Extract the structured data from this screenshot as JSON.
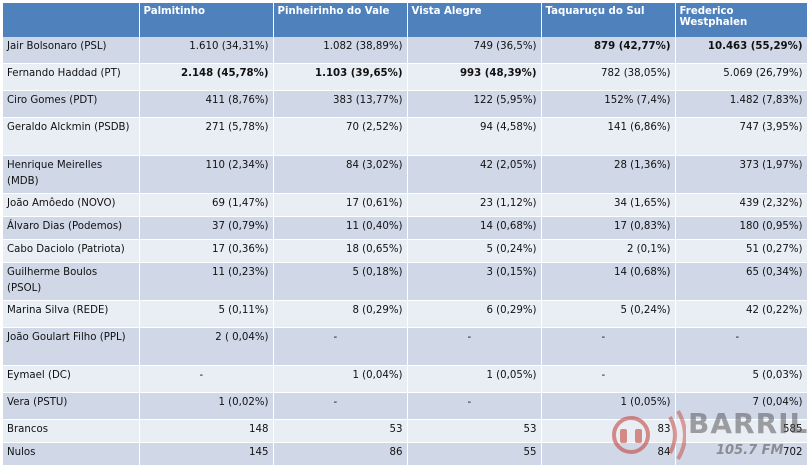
{
  "columns": [
    "",
    "Palmitinho",
    "Pinheirinho do Vale",
    "Vista Alegre",
    "Taquaruçu do Sul",
    "Frederico Westphalen"
  ],
  "rows": [
    {
      "name": "Jair Bolsonaro (PSL)",
      "cells": [
        "1.610 (34,31%)",
        "1.082 (38,89%)",
        "749 (36,5%)",
        "879 (42,77%)",
        "10.463 (55,29%)"
      ],
      "bold": [
        false,
        false,
        false,
        true,
        true
      ],
      "size": "med"
    },
    {
      "name": "Fernando Haddad (PT)",
      "cells": [
        "2.148 (45,78%)",
        "1.103 (39,65%)",
        "993 (48,39%)",
        "782 (38,05%)",
        "5.069 (26,79%)"
      ],
      "bold": [
        true,
        true,
        true,
        false,
        false
      ],
      "size": "med"
    },
    {
      "name": "Ciro Gomes (PDT)",
      "cells": [
        "411 (8,76%)",
        "383 (13,77%)",
        "122 (5,95%)",
        "152% (7,4%)",
        "1.482 (7,83%)"
      ],
      "bold": [
        false,
        false,
        false,
        false,
        false
      ],
      "size": "med"
    },
    {
      "name": "Geraldo Alckmin (PSDB)",
      "cells": [
        "271 (5,78%)",
        "70 (2,52%)",
        "94 (4,58%)",
        "141 (6,86%)",
        "747 (3,95%)"
      ],
      "bold": [
        false,
        false,
        false,
        false,
        false
      ],
      "size": "tall"
    },
    {
      "name": "Henrique Meirelles (MDB)",
      "cells": [
        "110 (2,34%)",
        "84 (3,02%)",
        "42 (2,05%)",
        "28 (1,36%)",
        "373 (1,97%)"
      ],
      "bold": [
        false,
        false,
        false,
        false,
        false
      ],
      "size": "tall"
    },
    {
      "name": "João Amôedo (NOVO)",
      "cells": [
        "69 (1,47%)",
        "17 (0,61%)",
        "23 (1,12%)",
        "34 (1,65%)",
        "439 (2,32%)"
      ],
      "bold": [
        false,
        false,
        false,
        false,
        false
      ],
      "size": "short"
    },
    {
      "name": "Álvaro Dias (Podemos)",
      "cells": [
        "37 (0,79%)",
        "11 (0,40%)",
        "14 (0,68%)",
        "17 (0,83%)",
        "180 (0,95%)"
      ],
      "bold": [
        false,
        false,
        false,
        false,
        false
      ],
      "size": "short"
    },
    {
      "name": "Cabo Daciolo (Patriota)",
      "cells": [
        "17 (0,36%)",
        "18 (0,65%)",
        "5 (0,24%)",
        "2 (0,1%)",
        "51 (0,27%)"
      ],
      "bold": [
        false,
        false,
        false,
        false,
        false
      ],
      "size": "short"
    },
    {
      "name": "Guilherme Boulos (PSOL)",
      "cells": [
        "11 (0,23%)",
        "5 (0,18%)",
        "3 (0,15%)",
        "14 (0,68%)",
        "65 (0,34%)"
      ],
      "bold": [
        false,
        false,
        false,
        false,
        false
      ],
      "size": "tall"
    },
    {
      "name": "Marina Silva (REDE)",
      "cells": [
        "5 (0,11%)",
        "8 (0,29%)",
        "6 (0,29%)",
        "5 (0,24%)",
        "42 (0,22%)"
      ],
      "bold": [
        false,
        false,
        false,
        false,
        false
      ],
      "size": "med"
    },
    {
      "name": "João Goulart Filho (PPL)",
      "cells": [
        "2 ( 0,04%)",
        "-",
        "-",
        "-",
        "-"
      ],
      "bold": [
        false,
        false,
        false,
        false,
        false
      ],
      "size": "tall"
    },
    {
      "name": "Eymael (DC)",
      "cells": [
        "-",
        "1 (0,04%)",
        "1 (0,05%)",
        "-",
        "5 (0,03%)"
      ],
      "bold": [
        false,
        false,
        false,
        false,
        false
      ],
      "size": "med"
    },
    {
      "name": "Vera (PSTU)",
      "cells": [
        "1 (0,02%)",
        "-",
        "-",
        "1 (0,05%)",
        "7 (0,04%)"
      ],
      "bold": [
        false,
        false,
        false,
        false,
        false
      ],
      "size": "med"
    },
    {
      "name": "Brancos",
      "cells": [
        "148",
        "53",
        "53",
        "83",
        "585"
      ],
      "bold": [
        false,
        false,
        false,
        false,
        false
      ],
      "size": "short"
    },
    {
      "name": "Nulos",
      "cells": [
        "145",
        "86",
        "55",
        "84",
        "702"
      ],
      "bold": [
        false,
        false,
        false,
        false,
        false
      ],
      "size": "short"
    }
  ],
  "watermark": {
    "brand": "BARRIL",
    "frequency": "105.7 FM",
    "accent": "#c0392b"
  }
}
